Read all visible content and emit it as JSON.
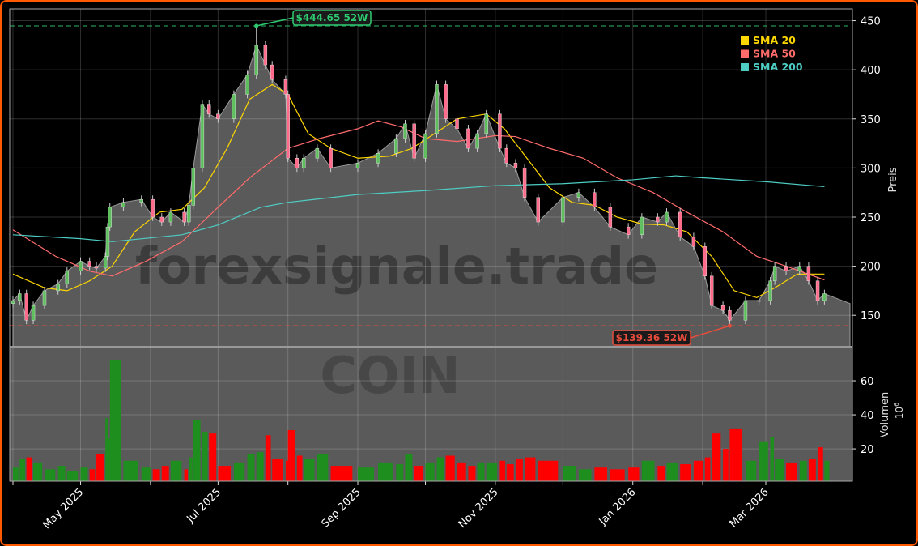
{
  "chart_data": {
    "type": "candlestick",
    "watermark": "forexsignale.trade",
    "ticker_watermark": "COIN",
    "price_axis": {
      "label": "Preis",
      "ticks": [
        150,
        200,
        250,
        300,
        350,
        400,
        450
      ],
      "ylim": [
        118,
        462
      ]
    },
    "volume_axis": {
      "label": "Volumen",
      "unit": "10",
      "unit_exp": "6",
      "ticks": [
        20,
        40,
        60
      ],
      "ylim": [
        1,
        80
      ]
    },
    "x_ticks": [
      {
        "date": "2025-04-01",
        "label": ""
      },
      {
        "date": "2025-05-01",
        "label": "May 2025"
      },
      {
        "date": "2025-06-01",
        "label": ""
      },
      {
        "date": "2025-07-01",
        "label": "Jul 2025"
      },
      {
        "date": "2025-08-01",
        "label": ""
      },
      {
        "date": "2025-09-01",
        "label": "Sep 2025"
      },
      {
        "date": "2025-10-01",
        "label": ""
      },
      {
        "date": "2025-11-01",
        "label": "Nov 2025"
      },
      {
        "date": "2025-12-01",
        "label": ""
      },
      {
        "date": "2026-01-01",
        "label": "Jan 2026"
      },
      {
        "date": "2026-02-01",
        "label": ""
      },
      {
        "date": "2026-03-01",
        "label": "Mar 2026"
      }
    ],
    "grid": true,
    "legend": {
      "placement": "top-right",
      "entries": [
        {
          "label": "SMA 20",
          "color": "#ffd700"
        },
        {
          "label": "SMA 50",
          "color": "#ff6b6b"
        },
        {
          "label": "SMA 200",
          "color": "#4ecdc4"
        }
      ]
    },
    "high_52w": {
      "value": 444.65,
      "date": "2025-07-18",
      "label": "$444.65 52W",
      "color": "#2ecc71"
    },
    "low_52w": {
      "value": 139.36,
      "date": "2026-02-13",
      "label": "$139.36 52W",
      "color": "#e74c3c"
    },
    "colors": {
      "up": "#1e8f1e",
      "down": "#ff0000",
      "candle_up": "#5fbf5f",
      "candle_down": "#ff6b8a",
      "area": "#5a5a5a"
    },
    "close": [
      [
        "2025-04-01",
        165,
        9
      ],
      [
        "2025-04-04",
        172,
        14
      ],
      [
        "2025-04-07",
        145,
        15
      ],
      [
        "2025-04-10",
        160,
        12
      ],
      [
        "2025-04-15",
        175,
        8
      ],
      [
        "2025-04-21",
        182,
        10
      ],
      [
        "2025-04-25",
        195,
        7
      ],
      [
        "2025-05-01",
        205,
        9
      ],
      [
        "2025-05-05",
        200,
        8
      ],
      [
        "2025-05-08",
        198,
        17
      ],
      [
        "2025-05-12",
        210,
        38
      ],
      [
        "2025-05-13",
        240,
        26
      ],
      [
        "2025-05-14",
        260,
        72
      ],
      [
        "2025-05-20",
        265,
        13
      ],
      [
        "2025-05-28",
        268,
        9
      ],
      [
        "2025-06-02",
        250,
        8
      ],
      [
        "2025-06-06",
        245,
        10
      ],
      [
        "2025-06-10",
        255,
        13
      ],
      [
        "2025-06-16",
        245,
        8
      ],
      [
        "2025-06-18",
        262,
        15
      ],
      [
        "2025-06-20",
        300,
        37
      ],
      [
        "2025-06-24",
        365,
        30
      ],
      [
        "2025-06-27",
        355,
        29
      ],
      [
        "2025-07-01",
        350,
        10
      ],
      [
        "2025-07-08",
        375,
        12
      ],
      [
        "2025-07-14",
        395,
        17
      ],
      [
        "2025-07-18",
        425,
        18
      ],
      [
        "2025-07-22",
        405,
        28
      ],
      [
        "2025-07-25",
        390,
        14
      ],
      [
        "2025-07-31",
        375,
        13
      ],
      [
        "2025-08-01",
        310,
        31
      ],
      [
        "2025-08-05",
        300,
        16
      ],
      [
        "2025-08-08",
        310,
        14
      ],
      [
        "2025-08-14",
        320,
        17
      ],
      [
        "2025-08-20",
        300,
        10
      ],
      [
        "2025-09-01",
        305,
        9
      ],
      [
        "2025-09-10",
        315,
        12
      ],
      [
        "2025-09-18",
        330,
        11
      ],
      [
        "2025-09-22",
        345,
        17
      ],
      [
        "2025-09-26",
        310,
        10
      ],
      [
        "2025-10-01",
        335,
        12
      ],
      [
        "2025-10-06",
        385,
        15
      ],
      [
        "2025-10-10",
        350,
        16
      ],
      [
        "2025-10-15",
        340,
        12
      ],
      [
        "2025-10-20",
        320,
        10
      ],
      [
        "2025-10-24",
        335,
        12
      ],
      [
        "2025-10-28",
        355,
        12
      ],
      [
        "2025-11-03",
        320,
        13
      ],
      [
        "2025-11-06",
        305,
        11
      ],
      [
        "2025-11-10",
        300,
        14
      ],
      [
        "2025-11-14",
        270,
        15
      ],
      [
        "2025-11-20",
        245,
        13
      ],
      [
        "2025-12-01",
        270,
        10
      ],
      [
        "2025-12-08",
        275,
        8
      ],
      [
        "2025-12-15",
        260,
        9
      ],
      [
        "2025-12-22",
        240,
        8
      ],
      [
        "2025-12-30",
        232,
        9
      ],
      [
        "2026-01-05",
        250,
        13
      ],
      [
        "2026-01-12",
        245,
        10
      ],
      [
        "2026-01-16",
        255,
        12
      ],
      [
        "2026-01-22",
        230,
        11
      ],
      [
        "2026-01-28",
        220,
        13
      ],
      [
        "2026-02-02",
        190,
        15
      ],
      [
        "2026-02-05",
        160,
        29
      ],
      [
        "2026-02-10",
        155,
        20
      ],
      [
        "2026-02-13",
        145,
        32
      ],
      [
        "2026-02-20",
        165,
        13
      ],
      [
        "2026-02-26",
        165,
        24
      ],
      [
        "2026-03-03",
        185,
        27
      ],
      [
        "2026-03-05",
        200,
        14
      ],
      [
        "2026-03-10",
        195,
        12
      ],
      [
        "2026-03-16",
        200,
        13
      ],
      [
        "2026-03-20",
        185,
        14
      ],
      [
        "2026-03-24",
        165,
        21
      ],
      [
        "2026-03-27",
        172,
        13
      ]
    ],
    "sma20": [
      [
        "2025-04-01",
        192
      ],
      [
        "2025-04-15",
        178
      ],
      [
        "2025-04-25",
        175
      ],
      [
        "2025-05-05",
        185
      ],
      [
        "2025-05-15",
        200
      ],
      [
        "2025-05-25",
        235
      ],
      [
        "2025-06-05",
        255
      ],
      [
        "2025-06-15",
        258
      ],
      [
        "2025-06-25",
        280
      ],
      [
        "2025-07-05",
        320
      ],
      [
        "2025-07-15",
        370
      ],
      [
        "2025-07-25",
        385
      ],
      [
        "2025-08-01",
        375
      ],
      [
        "2025-08-10",
        335
      ],
      [
        "2025-08-20",
        320
      ],
      [
        "2025-09-01",
        310
      ],
      [
        "2025-09-15",
        312
      ],
      [
        "2025-09-25",
        320
      ],
      [
        "2025-10-05",
        335
      ],
      [
        "2025-10-15",
        350
      ],
      [
        "2025-10-28",
        355
      ],
      [
        "2025-11-05",
        340
      ],
      [
        "2025-11-15",
        310
      ],
      [
        "2025-11-25",
        280
      ],
      [
        "2025-12-05",
        265
      ],
      [
        "2025-12-15",
        262
      ],
      [
        "2025-12-25",
        250
      ],
      [
        "2026-01-05",
        243
      ],
      [
        "2026-01-15",
        242
      ],
      [
        "2026-01-25",
        235
      ],
      [
        "2026-02-05",
        210
      ],
      [
        "2026-02-15",
        175
      ],
      [
        "2026-02-25",
        168
      ],
      [
        "2026-03-05",
        178
      ],
      [
        "2026-03-15",
        192
      ],
      [
        "2026-03-27",
        192
      ]
    ],
    "sma50": [
      [
        "2025-04-01",
        237
      ],
      [
        "2025-04-20",
        210
      ],
      [
        "2025-05-05",
        195
      ],
      [
        "2025-05-15",
        190
      ],
      [
        "2025-05-30",
        205
      ],
      [
        "2025-06-15",
        225
      ],
      [
        "2025-07-01",
        260
      ],
      [
        "2025-07-15",
        290
      ],
      [
        "2025-08-01",
        320
      ],
      [
        "2025-08-15",
        330
      ],
      [
        "2025-09-01",
        340
      ],
      [
        "2025-09-10",
        348
      ],
      [
        "2025-09-20",
        342
      ],
      [
        "2025-10-01",
        330
      ],
      [
        "2025-10-15",
        327
      ],
      [
        "2025-11-01",
        333
      ],
      [
        "2025-11-10",
        332
      ],
      [
        "2025-11-25",
        320
      ],
      [
        "2025-12-10",
        310
      ],
      [
        "2025-12-25",
        290
      ],
      [
        "2026-01-10",
        275
      ],
      [
        "2026-01-25",
        255
      ],
      [
        "2026-02-10",
        235
      ],
      [
        "2026-02-25",
        210
      ],
      [
        "2026-03-10",
        200
      ],
      [
        "2026-03-27",
        186
      ]
    ],
    "sma200": [
      [
        "2025-04-01",
        232
      ],
      [
        "2025-05-01",
        228
      ],
      [
        "2025-05-15",
        225
      ],
      [
        "2025-06-15",
        232
      ],
      [
        "2025-07-01",
        242
      ],
      [
        "2025-07-20",
        260
      ],
      [
        "2025-08-01",
        265
      ],
      [
        "2025-09-01",
        273
      ],
      [
        "2025-10-01",
        277
      ],
      [
        "2025-11-01",
        282
      ],
      [
        "2025-12-01",
        284
      ],
      [
        "2026-01-01",
        288
      ],
      [
        "2026-01-20",
        292
      ],
      [
        "2026-02-01",
        290
      ],
      [
        "2026-03-01",
        286
      ],
      [
        "2026-03-27",
        281
      ]
    ]
  }
}
